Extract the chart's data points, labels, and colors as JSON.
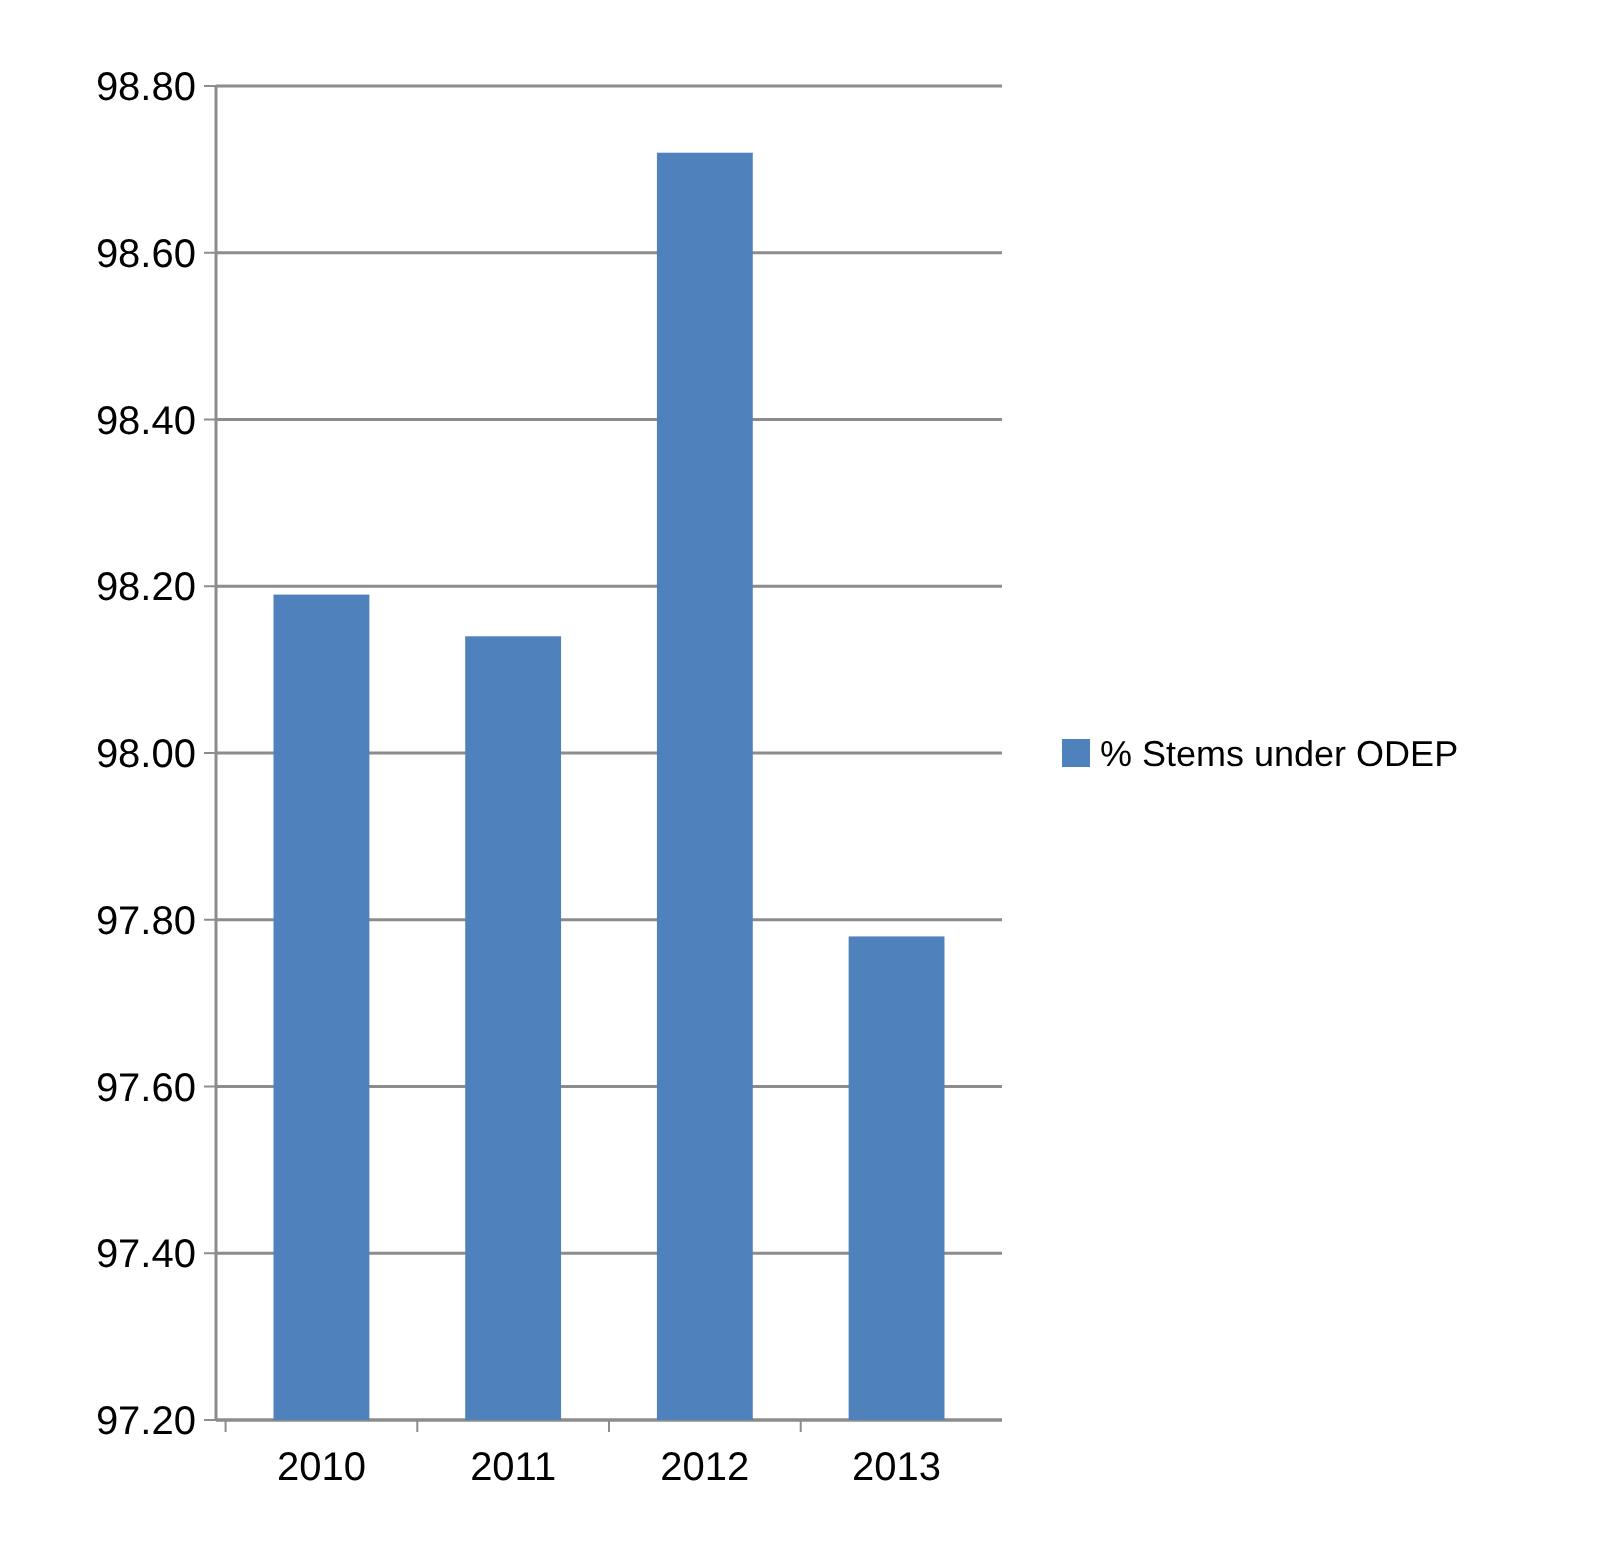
{
  "chart_data": {
    "type": "bar",
    "categories": [
      "2010",
      "2011",
      "2012",
      "2013"
    ],
    "series": [
      {
        "name": "% Stems under ODEP",
        "color": "#4f81bd",
        "values": [
          98.19,
          98.14,
          98.72,
          97.78
        ]
      }
    ],
    "ylim": [
      97.2,
      98.8
    ],
    "yticks": [
      {
        "value": 97.2,
        "label": "97.20"
      },
      {
        "value": 97.4,
        "label": "97.40"
      },
      {
        "value": 97.6,
        "label": "97.60"
      },
      {
        "value": 97.8,
        "label": "97.80"
      },
      {
        "value": 98.0,
        "label": "98.00"
      },
      {
        "value": 98.2,
        "label": "98.20"
      },
      {
        "value": 98.4,
        "label": "98.40"
      },
      {
        "value": 98.6,
        "label": "98.60"
      },
      {
        "value": 98.8,
        "label": "98.80"
      }
    ],
    "grid": "y",
    "legend": "right"
  }
}
